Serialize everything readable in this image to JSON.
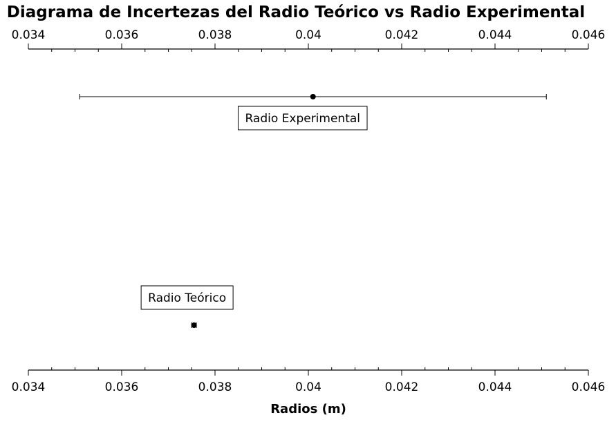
{
  "chart_data": {
    "type": "scatter",
    "title": "Diagrama de Incertezas del Radio Teórico vs Radio Experimental",
    "xlabel": "Radios (m)",
    "ylabel": "",
    "xlim": [
      0.034,
      0.046
    ],
    "major_ticks": [
      0.034,
      0.036,
      0.038,
      0.04,
      0.042,
      0.044,
      0.046
    ],
    "tick_labels": [
      "0.034",
      "0.036",
      "0.038",
      "0.04",
      "0.042",
      "0.044",
      "0.046"
    ],
    "minor_tick_step": 0.0005,
    "grid": false,
    "series": [
      {
        "name": "Radio Experimental",
        "x": 0.0401,
        "x_err_low": 0.0351,
        "x_err_high": 0.0451,
        "label": "Radio Experimental",
        "row": "upper"
      },
      {
        "name": "Radio Teórico",
        "x": 0.03755,
        "x_err_low": 0.0375,
        "x_err_high": 0.0376,
        "label": "Radio Teórico",
        "row": "lower"
      }
    ]
  }
}
